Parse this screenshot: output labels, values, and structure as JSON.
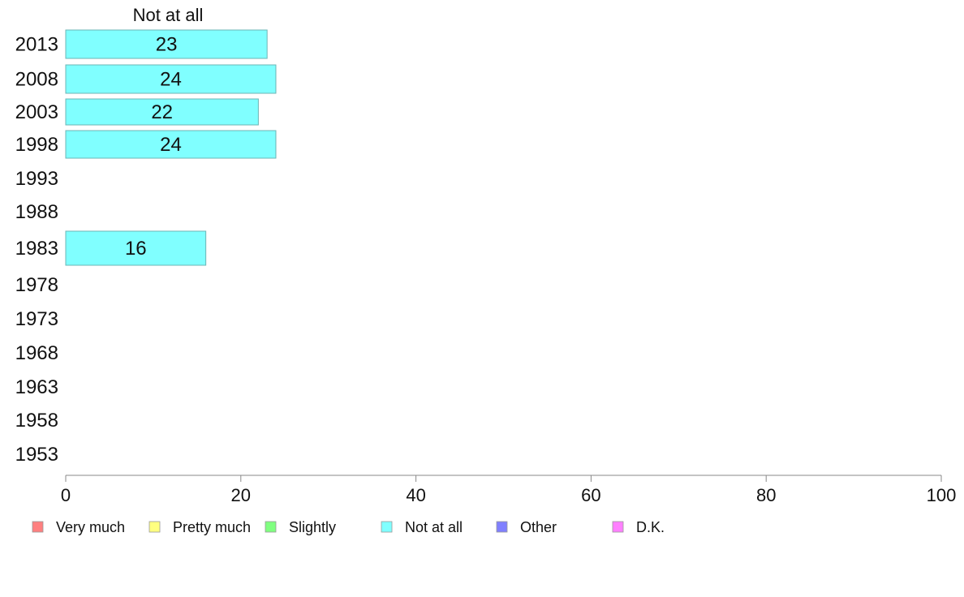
{
  "chart_data": {
    "type": "bar",
    "orientation": "horizontal",
    "stacked": true,
    "category_label": "Not at all",
    "categories": [
      "2013",
      "2008",
      "2003",
      "1998",
      "1993",
      "1988",
      "1983",
      "1978",
      "1973",
      "1968",
      "1963",
      "1958",
      "1953"
    ],
    "series": [
      {
        "name": "Not at all",
        "color": "#80ffff",
        "values": [
          23,
          24,
          22,
          24,
          null,
          null,
          16,
          null,
          null,
          null,
          null,
          null,
          null
        ]
      }
    ],
    "data_labels": [
      "23",
      "24",
      "22",
      "24",
      "",
      "",
      "16",
      "",
      "",
      "",
      "",
      "",
      ""
    ],
    "xlim": [
      0,
      100
    ],
    "xticks": [
      0,
      20,
      40,
      60,
      80,
      100
    ],
    "grid": false,
    "legend": {
      "position": "bottom",
      "items": [
        {
          "label": "Very much",
          "color": "#ff8080"
        },
        {
          "label": "Pretty much",
          "color": "#ffff80"
        },
        {
          "label": "Slightly",
          "color": "#80ff80"
        },
        {
          "label": "Not at all",
          "color": "#80ffff"
        },
        {
          "label": "Other",
          "color": "#8080ff"
        },
        {
          "label": "D.K.",
          "color": "#ff80ff"
        }
      ]
    }
  }
}
